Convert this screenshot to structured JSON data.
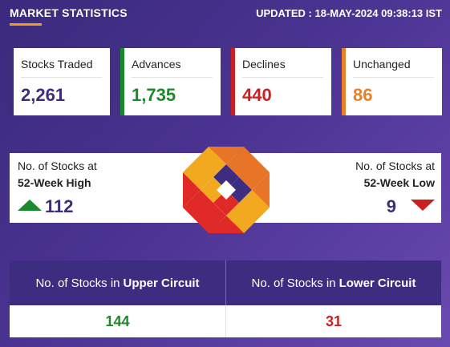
{
  "header": {
    "title": "MARKET STATISTICS",
    "updated": "UPDATED : 18-MAY-2024 09:38:13 IST"
  },
  "stats": [
    {
      "label": "Stocks Traded",
      "value": "2,261",
      "accent": "#3e2d7a",
      "value_color": "#3e2d7a"
    },
    {
      "label": "Advances",
      "value": "1,735",
      "accent": "#1a8a2a",
      "value_color": "#1a8a2a"
    },
    {
      "label": "Declines",
      "value": "440",
      "accent": "#cc1f1f",
      "value_color": "#cc1f1f"
    },
    {
      "label": "Unchanged",
      "value": "86",
      "accent": "#e8802a",
      "value_color": "#e8802a"
    }
  ],
  "week52": {
    "high": {
      "label": "No. of Stocks at",
      "sub": "52-Week High",
      "value": "112",
      "icon": "arrow-up-icon"
    },
    "low": {
      "label": "No. of Stocks at",
      "sub": "52-Week Low",
      "value": "9",
      "icon": "arrow-down-icon"
    }
  },
  "circuit": {
    "upper": {
      "prefix": "No. of Stocks in",
      "bold": "Upper Circuit",
      "value": "144"
    },
    "lower": {
      "prefix": "No. of Stocks in",
      "bold": "Lower Circuit",
      "value": "31"
    }
  },
  "colors": {
    "background": "#4a3391",
    "header_accent": "#f39a1f",
    "panel_header": "#3d2d80",
    "positive": "#1a8a2a",
    "negative": "#cc1f1f",
    "neutral": "#3e2d7a",
    "unchanged": "#e8802a"
  }
}
